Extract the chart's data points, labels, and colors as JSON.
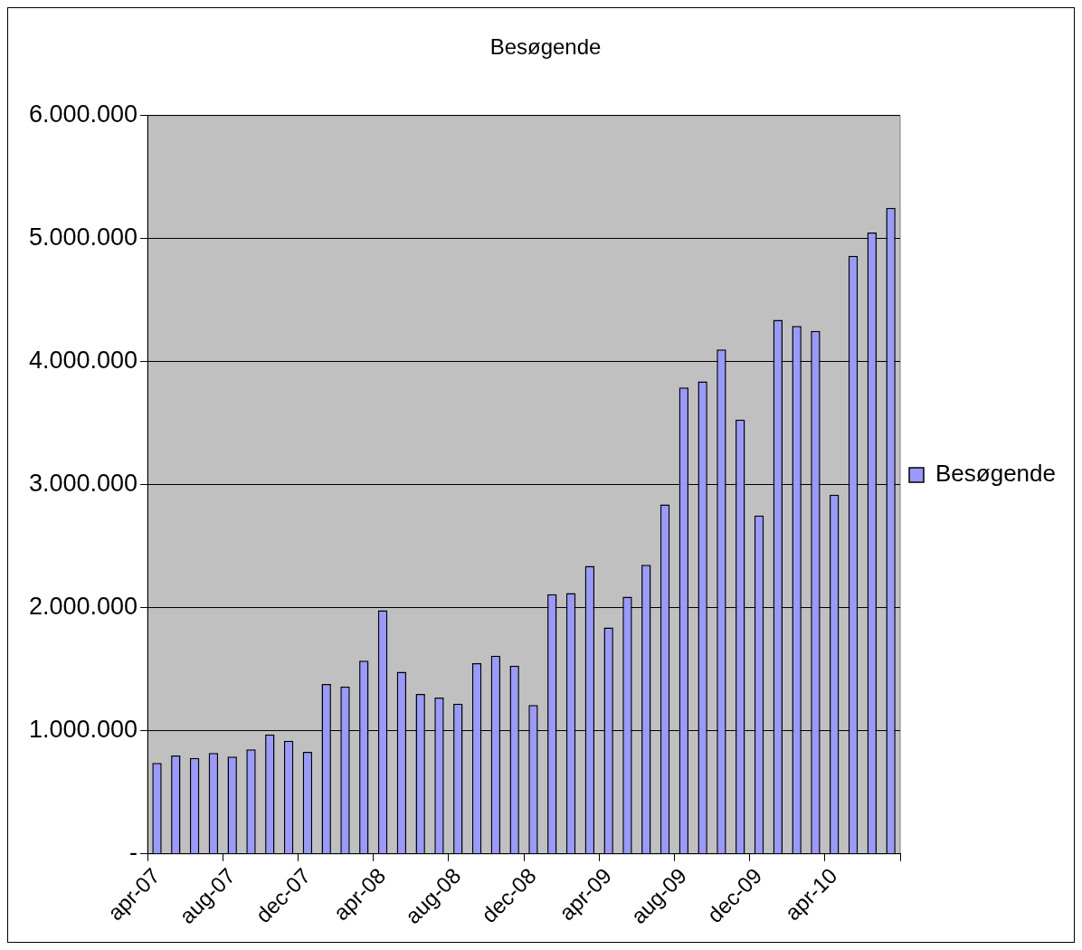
{
  "chart_data": {
    "type": "bar",
    "title": "Besøgende",
    "categories": [
      "apr-07",
      null,
      null,
      null,
      "aug-07",
      null,
      null,
      null,
      "dec-07",
      null,
      null,
      null,
      "apr-08",
      null,
      null,
      null,
      "aug-08",
      null,
      null,
      null,
      "dec-08",
      null,
      null,
      null,
      "apr-09",
      null,
      null,
      null,
      "aug-09",
      null,
      null,
      null,
      "dec-09",
      null,
      null,
      null,
      "apr-10",
      null,
      null,
      null
    ],
    "series": [
      {
        "name": "Besøgende",
        "color": "#9999ff",
        "values": [
          740000,
          800000,
          780000,
          820000,
          790000,
          850000,
          970000,
          920000,
          830000,
          1380000,
          1360000,
          1570000,
          1980000,
          1480000,
          1300000,
          1270000,
          1220000,
          1550000,
          1610000,
          1530000,
          1210000,
          2110000,
          2120000,
          2340000,
          1840000,
          2090000,
          2350000,
          2840000,
          3790000,
          3840000,
          4100000,
          3530000,
          2750000,
          4340000,
          4290000,
          4250000,
          2920000,
          4860000,
          5050000,
          5250000
        ]
      }
    ],
    "ylim": [
      0,
      6000000
    ],
    "yticks": [
      {
        "value": 0,
        "label": "-"
      },
      {
        "value": 1000000,
        "label": "1.000.000"
      },
      {
        "value": 2000000,
        "label": "2.000.000"
      },
      {
        "value": 3000000,
        "label": "3.000.000"
      },
      {
        "value": 4000000,
        "label": "4.000.000"
      },
      {
        "value": 5000000,
        "label": "5.000.000"
      },
      {
        "value": 6000000,
        "label": "6.000.000"
      }
    ],
    "grid": "y",
    "legend": "right"
  }
}
